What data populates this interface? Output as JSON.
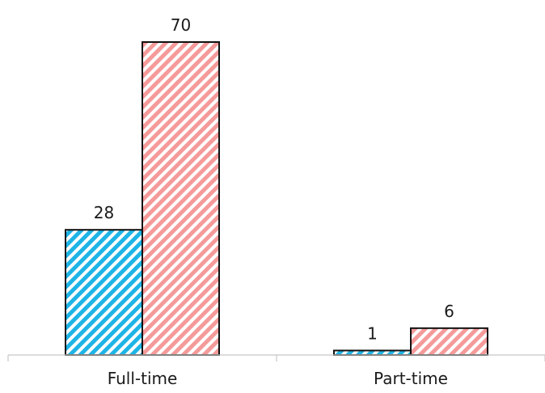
{
  "chart_data": {
    "type": "bar",
    "categories": [
      "Full-time",
      "Part-time"
    ],
    "series": [
      {
        "values": [
          28,
          1
        ],
        "color": "#1EB4E6",
        "pattern": "diagonal-hatch"
      },
      {
        "values": [
          70,
          6
        ],
        "color": "#F59A9A",
        "pattern": "diagonal-hatch"
      }
    ],
    "ylim": [
      0,
      70
    ],
    "grid": false,
    "legend": "none",
    "data_labels": true
  }
}
